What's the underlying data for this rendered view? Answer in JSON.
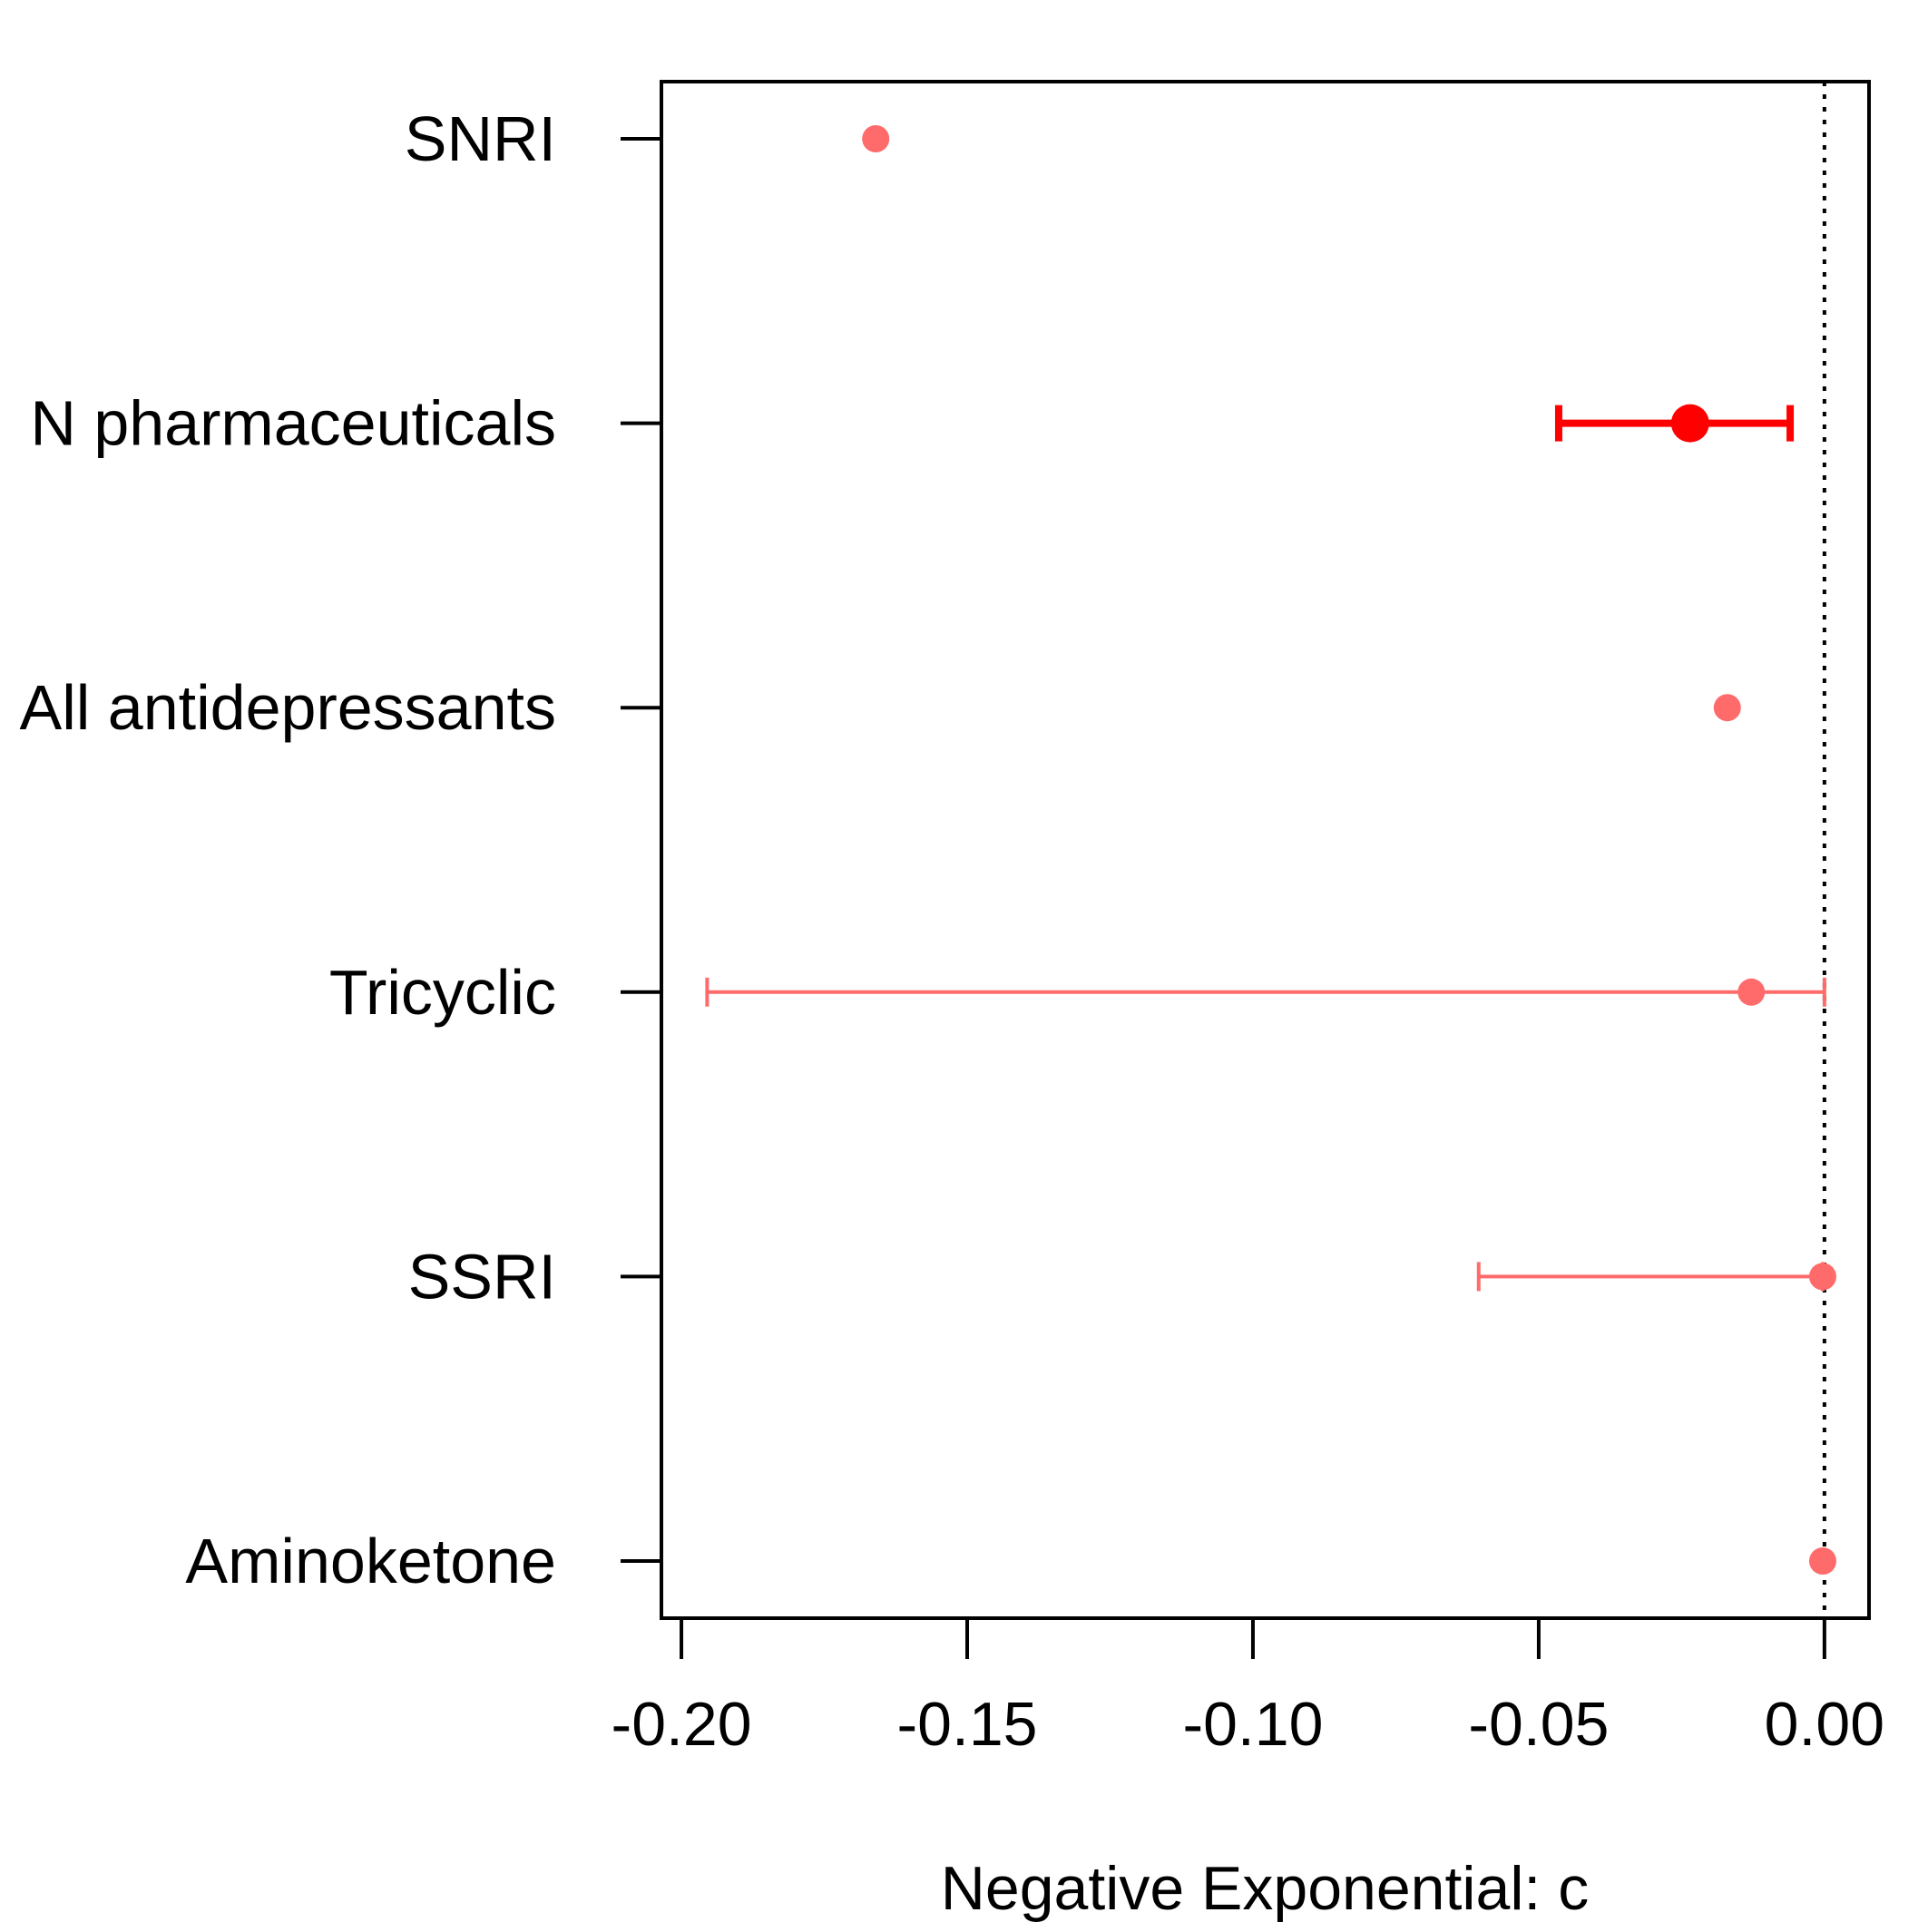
{
  "chart_data": {
    "type": "scatter",
    "subtype": "forest-plot",
    "title": "",
    "xlabel": "Negative Exponential: c",
    "ylabel": "",
    "xlim": [
      -0.2035,
      0.0078
    ],
    "x_ticks": [
      -0.2,
      -0.15,
      -0.1,
      -0.05,
      0.0
    ],
    "x_tick_labels": [
      "-0.20",
      "-0.15",
      "-0.10",
      "-0.05",
      "0.00"
    ],
    "reference_line": {
      "x": 0,
      "style": "dotted"
    },
    "grid": false,
    "categories": [
      "SNRI",
      "N pharmaceuticals",
      "All antidepressants",
      "Tricyclic",
      "SSRI",
      "Aminoketone"
    ],
    "points": [
      {
        "label": "SNRI",
        "estimate": -0.166,
        "lower": null,
        "upper": null,
        "emphasis": false
      },
      {
        "label": "N pharmaceuticals",
        "estimate": -0.0235,
        "lower": -0.0465,
        "upper": -0.006,
        "emphasis": true
      },
      {
        "label": "All antidepressants",
        "estimate": -0.017,
        "lower": null,
        "upper": null,
        "emphasis": false
      },
      {
        "label": "Tricyclic",
        "estimate": -0.0128,
        "lower": -0.1955,
        "upper": 0.0,
        "emphasis": false
      },
      {
        "label": "SSRI",
        "estimate": -0.0003,
        "lower": -0.0605,
        "upper": -0.0003,
        "emphasis": false
      },
      {
        "label": "Aminoketone",
        "estimate": -0.0003,
        "lower": null,
        "upper": null,
        "emphasis": false
      }
    ],
    "colors": {
      "primary": "#ff0000",
      "secondary": "#ff6b6b",
      "axis": "#000000"
    }
  }
}
